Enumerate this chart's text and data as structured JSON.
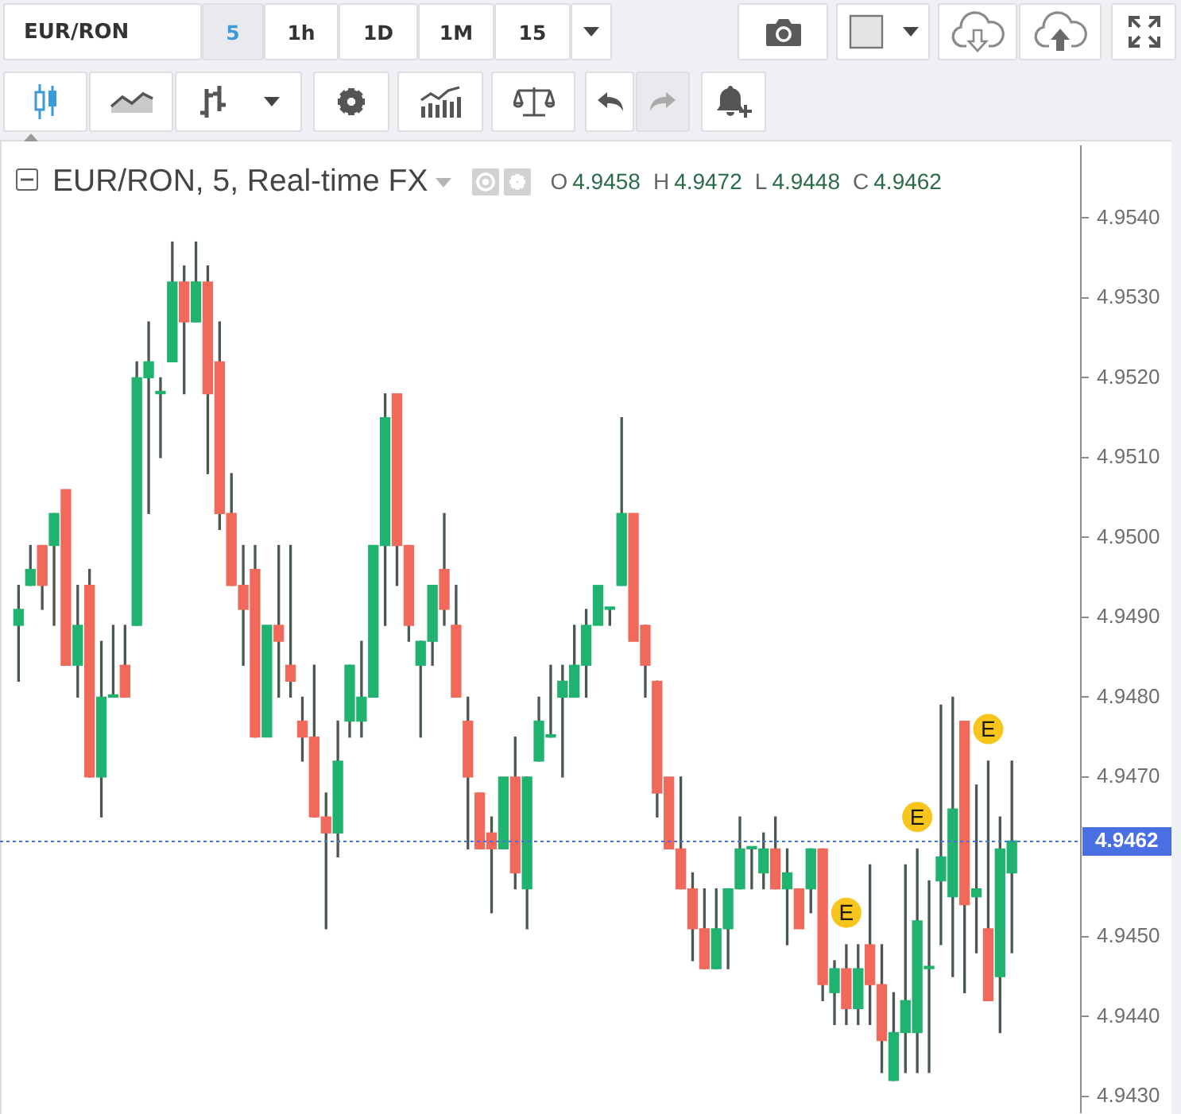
{
  "chart_data": {
    "type": "candlestick",
    "title": "EUR/RON, 5, Real-time FX",
    "subtitle": "O 4.9458 H 4.9472 L 4.9448 C 4.9462",
    "annotations": [
      "EUR/RON",
      "5",
      "1h",
      "1D",
      "1M",
      "15"
    ],
    "categories": [
      null,
      null,
      null,
      null,
      null,
      null,
      null,
      null,
      null,
      null,
      null,
      null,
      null,
      null,
      null,
      null,
      null,
      null,
      null,
      null,
      null,
      null,
      null,
      null,
      null,
      null,
      null,
      null,
      null,
      null,
      null,
      null,
      null,
      null,
      null,
      null,
      null,
      null,
      null,
      null,
      null,
      null,
      null,
      null,
      null,
      null,
      null,
      null,
      null,
      null,
      null,
      null,
      null,
      null,
      null,
      null,
      null,
      null,
      null,
      null,
      null,
      null,
      null,
      null,
      null,
      null,
      null,
      null,
      null,
      null,
      null,
      null,
      null,
      null,
      null,
      null,
      null,
      null,
      null,
      null,
      null,
      null,
      null,
      null,
      null
    ],
    "ohlc": [
      [
        4.9489,
        4.9494,
        4.9482,
        4.9491
      ],
      [
        4.9494,
        4.9499,
        4.9494,
        4.9496
      ],
      [
        4.9499,
        4.9499,
        4.9491,
        4.9494
      ],
      [
        4.9499,
        4.9503,
        4.9489,
        4.9503
      ],
      [
        4.9506,
        4.9506,
        4.9484,
        4.9484
      ],
      [
        4.9484,
        4.9494,
        4.948,
        4.9489
      ],
      [
        4.9494,
        4.9496,
        4.947,
        4.947
      ],
      [
        4.947,
        4.9487,
        4.9465,
        4.948
      ],
      [
        4.948,
        4.9489,
        4.948,
        4.948
      ],
      [
        4.9484,
        4.9489,
        4.948,
        4.948
      ],
      [
        4.9489,
        4.9522,
        4.9489,
        4.952
      ],
      [
        4.952,
        4.9527,
        4.9503,
        4.9522
      ],
      [
        4.9518,
        4.952,
        4.951,
        4.9518
      ],
      [
        4.9522,
        4.9537,
        4.9522,
        4.9532
      ],
      [
        4.9532,
        4.9534,
        4.9518,
        4.9527
      ],
      [
        4.9527,
        4.9537,
        4.9527,
        4.9532
      ],
      [
        4.9532,
        4.9534,
        4.9508,
        4.9518
      ],
      [
        4.9522,
        4.9527,
        4.9501,
        4.9503
      ],
      [
        4.9503,
        4.9508,
        4.9494,
        4.9494
      ],
      [
        4.9494,
        4.9499,
        4.9484,
        4.9491
      ],
      [
        4.9496,
        4.9499,
        4.9475,
        4.9475
      ],
      [
        4.9475,
        4.9489,
        4.9475,
        4.9489
      ],
      [
        4.9489,
        4.9499,
        4.948,
        4.9487
      ],
      [
        4.9484,
        4.9499,
        4.948,
        4.9482
      ],
      [
        4.9477,
        4.948,
        4.9472,
        4.9475
      ],
      [
        4.9475,
        4.9484,
        4.9465,
        4.9465
      ],
      [
        4.9465,
        4.9468,
        4.9451,
        4.9463
      ],
      [
        4.9463,
        4.9477,
        4.946,
        4.9472
      ],
      [
        4.9477,
        4.9484,
        4.9475,
        4.9484
      ],
      [
        4.9477,
        4.9487,
        4.9475,
        4.948
      ],
      [
        4.948,
        4.9499,
        4.948,
        4.9499
      ],
      [
        4.9499,
        4.9518,
        4.9489,
        4.9515
      ],
      [
        4.9518,
        4.9518,
        4.9494,
        4.9499
      ],
      [
        4.9499,
        4.9499,
        4.9487,
        4.9489
      ],
      [
        4.9484,
        4.9487,
        4.9475,
        4.9487
      ],
      [
        4.9487,
        4.9494,
        4.9484,
        4.9494
      ],
      [
        4.9496,
        4.9503,
        4.9489,
        4.9491
      ],
      [
        4.9489,
        4.9494,
        4.948,
        4.948
      ],
      [
        4.9477,
        4.948,
        4.9461,
        4.947
      ],
      [
        4.9468,
        4.9468,
        4.9461,
        4.9461
      ],
      [
        4.9463,
        4.9465,
        4.9453,
        4.9461
      ],
      [
        4.9461,
        4.947,
        4.9461,
        4.947
      ],
      [
        4.947,
        4.9475,
        4.9456,
        4.9458
      ],
      [
        4.9456,
        4.947,
        4.9451,
        4.947
      ],
      [
        4.9472,
        4.948,
        4.9472,
        4.9477
      ],
      [
        4.9475,
        4.9484,
        4.9475,
        4.9475
      ],
      [
        4.948,
        4.9484,
        4.947,
        4.9482
      ],
      [
        4.948,
        4.9489,
        4.948,
        4.9484
      ],
      [
        4.9484,
        4.9491,
        4.948,
        4.9489
      ],
      [
        4.9489,
        4.9494,
        4.9489,
        4.9494
      ],
      [
        4.9491,
        4.9491,
        4.9489,
        4.9491
      ],
      [
        4.9494,
        4.9515,
        4.9494,
        4.9503
      ],
      [
        4.9503,
        4.9503,
        4.9487,
        4.9487
      ],
      [
        4.9489,
        4.9489,
        4.948,
        4.9484
      ],
      [
        4.9482,
        4.9482,
        4.9465,
        4.9468
      ],
      [
        4.947,
        4.947,
        4.9461,
        4.9461
      ],
      [
        4.9461,
        4.947,
        4.9456,
        4.9456
      ],
      [
        4.9456,
        4.9458,
        4.9447,
        4.9451
      ],
      [
        4.9451,
        4.9456,
        4.9446,
        4.9446
      ],
      [
        4.9446,
        4.9456,
        4.9446,
        4.9451
      ],
      [
        4.9451,
        4.9456,
        4.9446,
        4.9456
      ],
      [
        4.9456,
        4.9465,
        4.9456,
        4.9461
      ],
      [
        4.9461,
        4.9461,
        4.9456,
        4.9461
      ],
      [
        4.9458,
        4.9463,
        4.9456,
        4.9461
      ],
      [
        4.9461,
        4.9465,
        4.9456,
        4.9456
      ],
      [
        4.9456,
        4.9461,
        4.9449,
        4.9458
      ],
      [
        4.9456,
        4.9456,
        4.9451,
        4.9451
      ],
      [
        4.9456,
        4.9461,
        4.9453,
        4.9461
      ],
      [
        4.9461,
        4.9461,
        4.9442,
        4.9444
      ],
      [
        4.9443,
        4.9447,
        4.9439,
        4.9446
      ],
      [
        4.9446,
        4.9449,
        4.9439,
        4.9441
      ],
      [
        4.9441,
        4.9449,
        4.9439,
        4.9446
      ],
      [
        4.9449,
        4.9459,
        4.9439,
        4.9444
      ],
      [
        4.9444,
        4.9449,
        4.9433,
        4.9437
      ],
      [
        4.9432,
        4.9443,
        4.9432,
        4.9438
      ],
      [
        4.9438,
        4.9459,
        4.9433,
        4.9442
      ],
      [
        4.9438,
        4.9461,
        4.9433,
        4.9452
      ],
      [
        4.9446,
        4.9457,
        4.9433,
        4.9446
      ],
      [
        4.9457,
        4.9479,
        4.9449,
        4.946
      ],
      [
        4.9455,
        4.948,
        4.9445,
        4.9466
      ],
      [
        4.9477,
        4.9477,
        4.9443,
        4.9454
      ],
      [
        4.9455,
        4.9469,
        4.9448,
        4.9456
      ],
      [
        4.9451,
        4.9472,
        4.9442,
        4.9442
      ],
      [
        4.9445,
        4.9465,
        4.9438,
        4.9461
      ],
      [
        4.9458,
        4.9472,
        4.9448,
        4.9462
      ]
    ],
    "colors": [
      "#1fb36f",
      "#1fb36f",
      "#f0695b",
      "#1fb36f",
      "#f0695b",
      "#1fb36f",
      "#f0695b",
      "#1fb36f",
      "#1fb36f",
      "#f0695b",
      "#1fb36f",
      "#1fb36f",
      "#1fb36f",
      "#1fb36f",
      "#f0695b",
      "#1fb36f",
      "#f0695b",
      "#f0695b",
      "#f0695b",
      "#f0695b",
      "#f0695b",
      "#1fb36f",
      "#f0695b",
      "#f0695b",
      "#f0695b",
      "#f0695b",
      "#f0695b",
      "#1fb36f",
      "#1fb36f",
      "#1fb36f",
      "#1fb36f",
      "#1fb36f",
      "#f0695b",
      "#f0695b",
      "#1fb36f",
      "#1fb36f",
      "#f0695b",
      "#f0695b",
      "#f0695b",
      "#f0695b",
      "#f0695b",
      "#1fb36f",
      "#f0695b",
      "#1fb36f",
      "#1fb36f",
      "#1fb36f",
      "#1fb36f",
      "#1fb36f",
      "#1fb36f",
      "#1fb36f",
      "#1fb36f",
      "#1fb36f",
      "#f0695b",
      "#f0695b",
      "#f0695b",
      "#f0695b",
      "#f0695b",
      "#f0695b",
      "#f0695b",
      "#1fb36f",
      "#1fb36f",
      "#1fb36f",
      "#1fb36f",
      "#1fb36f",
      "#f0695b",
      "#1fb36f",
      "#f0695b",
      "#1fb36f",
      "#f0695b",
      "#1fb36f",
      "#f0695b",
      "#1fb36f",
      "#f0695b",
      "#f0695b",
      "#1fb36f",
      "#1fb36f",
      "#1fb36f",
      "#1fb36f",
      "#1fb36f",
      "#1fb36f",
      "#f0695b",
      "#1fb36f",
      "#f0695b",
      "#1fb36f",
      "#1fb36f"
    ],
    "series": [
      {
        "type": "scatter",
        "color": "#f7c51c",
        "marker": "circle",
        "values": [
          null,
          null,
          null,
          null,
          null,
          null,
          null,
          null,
          null,
          null,
          null,
          null,
          null,
          null,
          null,
          null,
          null,
          null,
          null,
          null,
          null,
          null,
          null,
          null,
          null,
          null,
          null,
          null,
          null,
          null,
          null,
          null,
          null,
          null,
          null,
          null,
          null,
          null,
          null,
          null,
          null,
          null,
          null,
          null,
          null,
          null,
          null,
          null,
          null,
          null,
          null,
          null,
          null,
          null,
          null,
          null,
          null,
          null,
          null,
          null,
          null,
          null,
          null,
          null,
          null,
          null,
          null,
          null,
          null,
          null,
          4.9453,
          null,
          null,
          null,
          null,
          null,
          4.9465,
          null,
          null,
          null,
          null,
          null,
          4.9476,
          null,
          null
        ],
        "value_labels": [
          null,
          null,
          null,
          null,
          null,
          null,
          null,
          null,
          null,
          null,
          null,
          null,
          null,
          null,
          null,
          null,
          null,
          null,
          null,
          null,
          null,
          null,
          null,
          null,
          null,
          null,
          null,
          null,
          null,
          null,
          null,
          null,
          null,
          null,
          null,
          null,
          null,
          null,
          null,
          null,
          null,
          null,
          null,
          null,
          null,
          null,
          null,
          null,
          null,
          null,
          null,
          null,
          null,
          null,
          null,
          null,
          null,
          null,
          null,
          null,
          null,
          null,
          null,
          null,
          null,
          null,
          null,
          null,
          null,
          null,
          "E",
          null,
          null,
          null,
          null,
          null,
          "E",
          null,
          null,
          null,
          null,
          null,
          "E",
          null,
          null
        ]
      }
    ],
    "ylim": [
      4.9428,
      4.9549
    ],
    "yticks": [
      {
        "value": 4.943,
        "label": "4.9430"
      },
      {
        "value": 4.944,
        "label": "4.9440"
      },
      {
        "value": 4.945,
        "label": "4.9450"
      },
      {
        "value": 4.947,
        "label": "4.9470"
      },
      {
        "value": 4.948,
        "label": "4.9480"
      },
      {
        "value": 4.949,
        "label": "4.9490"
      },
      {
        "value": 4.95,
        "label": "4.9500"
      },
      {
        "value": 4.951,
        "label": "4.9510"
      },
      {
        "value": 4.952,
        "label": "4.9520"
      },
      {
        "value": 4.953,
        "label": "4.9530"
      },
      {
        "value": 4.954,
        "label": "4.9540"
      }
    ],
    "tick_labels": "y",
    "ref_lines": [
      {
        "axis": "y",
        "value": 4.9462,
        "label": "4.9462",
        "color": "#4a6fe3",
        "line_style": "dotted"
      }
    ]
  }
}
